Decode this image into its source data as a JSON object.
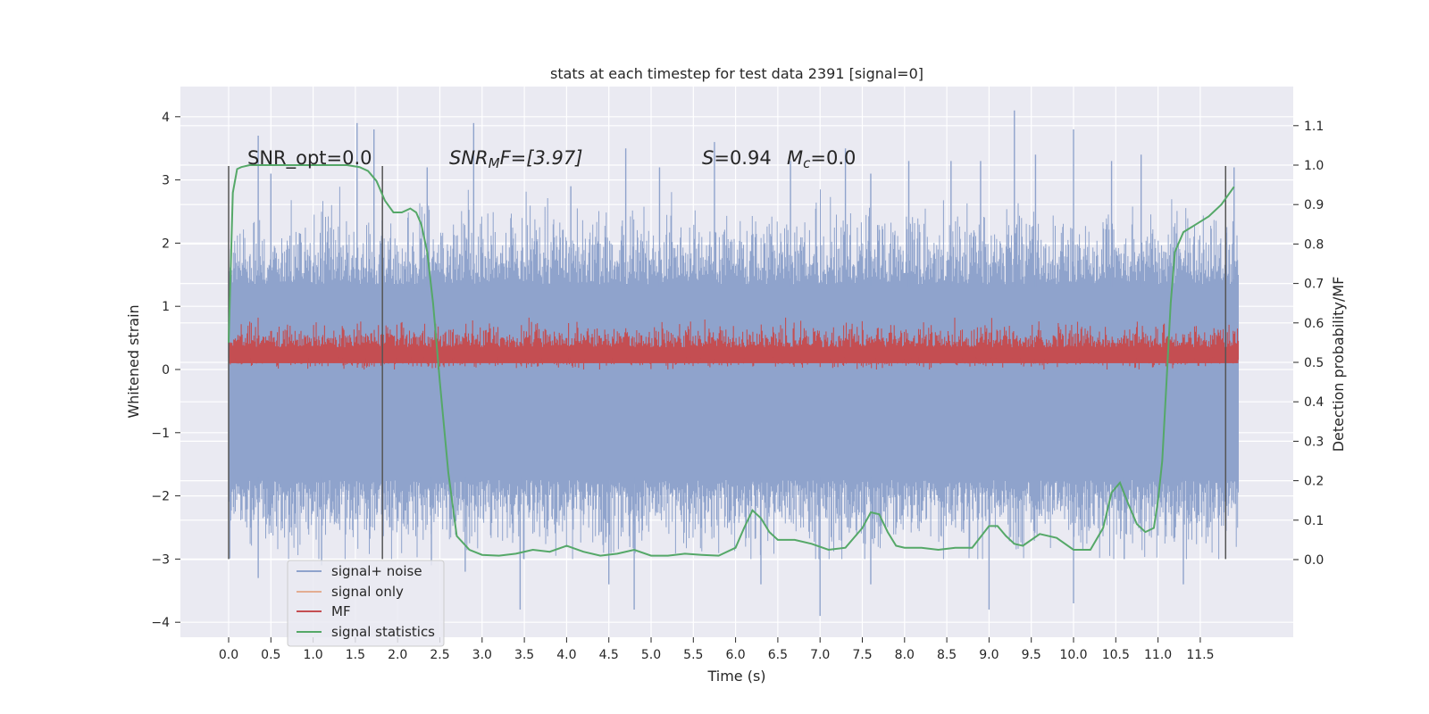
{
  "chart_data": {
    "type": "line",
    "title": "stats at each timestep for test data 2391 [signal=0]",
    "xlabel": "Time (s)",
    "ylabel": "Whitened strain",
    "y2label": "Detection probability/MF",
    "xlim": [
      -0.5,
      12.6
    ],
    "ylim": [
      -4.3,
      4.4
    ],
    "y2lim": [
      -0.21,
      1.23
    ],
    "xticks": [
      "0.0",
      "0.5",
      "1.0",
      "1.5",
      "2.0",
      "2.5",
      "3.0",
      "3.5",
      "4.0",
      "4.5",
      "5.0",
      "5.5",
      "6.0",
      "6.5",
      "7.0",
      "7.5",
      "8.0",
      "8.5",
      "9.0",
      "9.5",
      "10.0",
      "10.5",
      "11.0",
      "11.5"
    ],
    "yticks": [
      4,
      3,
      2,
      1,
      0,
      -1,
      -2,
      -3,
      -4
    ],
    "y2ticks": [
      "0.0",
      "0.1",
      "0.2",
      "0.3",
      "0.4",
      "0.5",
      "0.6",
      "0.7",
      "0.8",
      "0.9",
      "1.0",
      "1.1"
    ],
    "grid": true,
    "legend_position": "lower-left",
    "annotations": {
      "snr_opt": "SNR_opt=0.0",
      "snr_mf_sym": "SNR",
      "snr_mf_sub": "M",
      "snr_mf_rest": "F=[3.97]",
      "s_sym": "S",
      "s_val": "=0.94",
      "mc_sym": "M",
      "mc_sub": "c",
      "mc_val": "=0.0"
    },
    "vlines": [
      0.0,
      1.82,
      11.8
    ],
    "series": [
      {
        "name": "signal+ noise",
        "color": "#8fa3cc",
        "description_range": [
          -3.8,
          4.1
        ],
        "peaks": [
          [
            0.35,
            3.7
          ],
          [
            0.5,
            3.1
          ],
          [
            1.52,
            3.9
          ],
          [
            1.72,
            3.8
          ],
          [
            2.35,
            3.2
          ],
          [
            2.9,
            3.9
          ],
          [
            4.05,
            2.9
          ],
          [
            4.7,
            3.5
          ],
          [
            5.1,
            3.2
          ],
          [
            5.75,
            3.6
          ],
          [
            6.65,
            3.3
          ],
          [
            7.3,
            3.5
          ],
          [
            7.6,
            3.1
          ],
          [
            8.05,
            3.3
          ],
          [
            8.55,
            3.3
          ],
          [
            8.9,
            3.3
          ],
          [
            9.3,
            4.1
          ],
          [
            9.55,
            3.4
          ],
          [
            10.0,
            3.8
          ],
          [
            10.45,
            3.3
          ],
          [
            10.8,
            3.4
          ],
          [
            11.9,
            3.2
          ]
        ],
        "troughs": [
          [
            0.35,
            -3.3
          ],
          [
            1.1,
            -3.1
          ],
          [
            2.4,
            -3.1
          ],
          [
            2.8,
            -3.2
          ],
          [
            3.45,
            -3.8
          ],
          [
            4.5,
            -3.4
          ],
          [
            4.8,
            -3.8
          ],
          [
            6.3,
            -3.4
          ],
          [
            7.0,
            -3.9
          ],
          [
            7.6,
            -3.4
          ],
          [
            9.0,
            -3.8
          ],
          [
            10.0,
            -3.7
          ],
          [
            10.6,
            -3.0
          ],
          [
            11.3,
            -3.4
          ]
        ]
      },
      {
        "name": "signal only",
        "color": "#dd8452",
        "values": []
      },
      {
        "name": "MF",
        "color": "#c44e52",
        "band": [
          0.0,
          0.72
        ]
      },
      {
        "name": "signal statistics",
        "color": "#55a868",
        "x": [
          0.0,
          0.05,
          0.1,
          0.15,
          0.25,
          0.4,
          0.6,
          0.8,
          1.0,
          1.2,
          1.4,
          1.55,
          1.65,
          1.75,
          1.85,
          1.95,
          2.05,
          2.15,
          2.22,
          2.28,
          2.35,
          2.42,
          2.5,
          2.6,
          2.7,
          2.85,
          3.0,
          3.2,
          3.4,
          3.6,
          3.8,
          4.0,
          4.2,
          4.4,
          4.6,
          4.8,
          5.0,
          5.2,
          5.4,
          5.6,
          5.8,
          6.0,
          6.1,
          6.2,
          6.3,
          6.4,
          6.5,
          6.7,
          6.9,
          7.1,
          7.3,
          7.5,
          7.6,
          7.7,
          7.8,
          7.9,
          8.0,
          8.2,
          8.4,
          8.6,
          8.8,
          9.0,
          9.1,
          9.2,
          9.3,
          9.4,
          9.6,
          9.8,
          10.0,
          10.2,
          10.35,
          10.45,
          10.55,
          10.65,
          10.75,
          10.85,
          10.95,
          11.0,
          11.05,
          11.1,
          11.15,
          11.2,
          11.3,
          11.45,
          11.6,
          11.75,
          11.9
        ],
        "y": [
          0.55,
          0.93,
          0.99,
          0.995,
          1.0,
          1.0,
          1.0,
          1.0,
          1.0,
          1.0,
          1.0,
          0.995,
          0.985,
          0.96,
          0.91,
          0.88,
          0.88,
          0.89,
          0.88,
          0.85,
          0.78,
          0.65,
          0.45,
          0.22,
          0.06,
          0.025,
          0.012,
          0.01,
          0.015,
          0.025,
          0.02,
          0.035,
          0.02,
          0.01,
          0.015,
          0.025,
          0.01,
          0.01,
          0.015,
          0.012,
          0.01,
          0.03,
          0.08,
          0.125,
          0.105,
          0.07,
          0.05,
          0.05,
          0.04,
          0.025,
          0.03,
          0.08,
          0.12,
          0.115,
          0.07,
          0.035,
          0.03,
          0.03,
          0.025,
          0.03,
          0.03,
          0.085,
          0.085,
          0.06,
          0.04,
          0.035,
          0.065,
          0.055,
          0.025,
          0.025,
          0.08,
          0.17,
          0.195,
          0.14,
          0.09,
          0.07,
          0.08,
          0.15,
          0.25,
          0.45,
          0.65,
          0.78,
          0.83,
          0.85,
          0.87,
          0.9,
          0.945
        ]
      }
    ]
  }
}
